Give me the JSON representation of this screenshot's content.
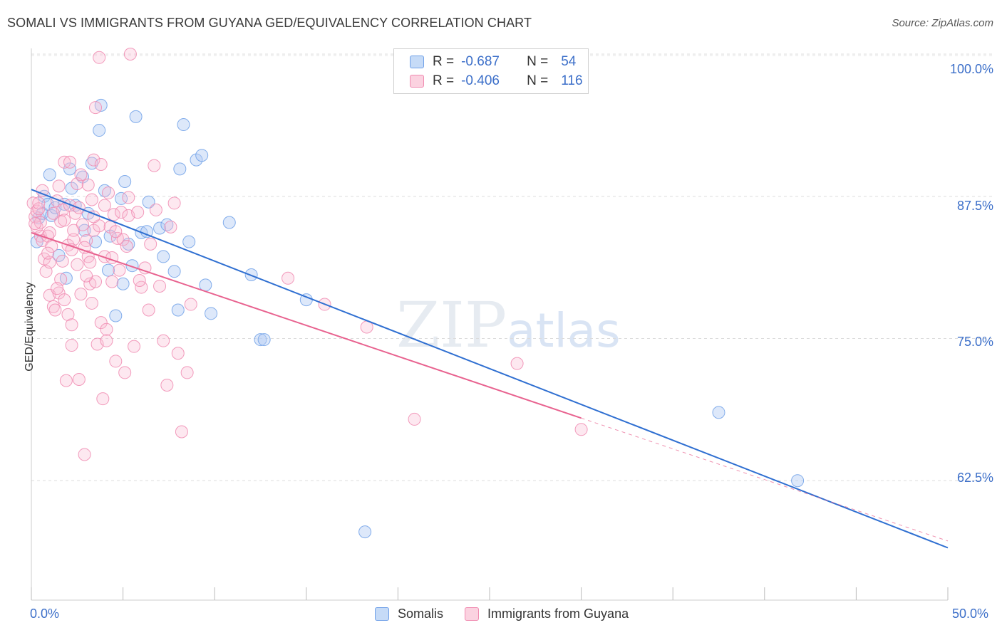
{
  "title": "SOMALI VS IMMIGRANTS FROM GUYANA GED/EQUIVALENCY CORRELATION CHART",
  "source": "Source: ZipAtlas.com",
  "watermark": {
    "zip": "ZIP",
    "atlas": "atlas"
  },
  "legend": {
    "rows": [
      {
        "r_label": "R =",
        "r_value": "-0.687",
        "n_label": "N =",
        "n_value": "54",
        "color": "#6fa0e8"
      },
      {
        "r_label": "R =",
        "r_value": "-0.406",
        "n_label": "N =",
        "n_value": "116",
        "color": "#f08ab0"
      }
    ]
  },
  "bottom_legend": [
    {
      "label": "Somalis",
      "color": "#6fa0e8"
    },
    {
      "label": "Immigrants from Guyana",
      "color": "#f08ab0"
    }
  ],
  "chart_data": {
    "type": "scatter",
    "title": "SOMALI VS IMMIGRANTS FROM GUYANA GED/EQUIVALENCY CORRELATION CHART",
    "xlabel": "",
    "ylabel": "GED/Equivalency",
    "xlim": [
      0,
      50
    ],
    "ylim": [
      52,
      100.5
    ],
    "x_tick_labels": [
      "0.0%",
      "50.0%"
    ],
    "y_ticks": [
      62.5,
      75.0,
      87.5,
      100.0
    ],
    "y_tick_labels": [
      "62.5%",
      "75.0%",
      "87.5%",
      "100.0%"
    ],
    "grid": true,
    "series": [
      {
        "name": "Somalis",
        "color": "#6fa0e8",
        "line_color": "#2f6fd1",
        "trend": {
          "x": [
            0,
            50
          ],
          "y": [
            88.1,
            56.6
          ]
        },
        "points": [
          [
            0.3,
            83.5
          ],
          [
            0.4,
            85.6
          ],
          [
            0.6,
            86.0
          ],
          [
            0.7,
            87.5
          ],
          [
            0.9,
            86.8
          ],
          [
            1.0,
            89.4
          ],
          [
            1.1,
            85.8
          ],
          [
            1.3,
            86.5
          ],
          [
            1.5,
            82.3
          ],
          [
            1.8,
            86.8
          ],
          [
            1.9,
            80.3
          ],
          [
            2.1,
            89.9
          ],
          [
            2.2,
            88.2
          ],
          [
            2.4,
            86.7
          ],
          [
            2.8,
            89.2
          ],
          [
            2.9,
            84.5
          ],
          [
            3.1,
            86.0
          ],
          [
            3.3,
            90.4
          ],
          [
            3.5,
            83.5
          ],
          [
            3.7,
            93.3
          ],
          [
            3.8,
            95.5
          ],
          [
            4.0,
            88.0
          ],
          [
            4.2,
            81.0
          ],
          [
            4.3,
            84.0
          ],
          [
            4.6,
            77.0
          ],
          [
            4.9,
            87.3
          ],
          [
            5.0,
            79.8
          ],
          [
            5.1,
            88.8
          ],
          [
            5.3,
            83.3
          ],
          [
            5.5,
            81.4
          ],
          [
            5.7,
            94.5
          ],
          [
            6.0,
            84.3
          ],
          [
            6.4,
            87.0
          ],
          [
            7.0,
            84.7
          ],
          [
            7.2,
            82.2
          ],
          [
            7.4,
            85.0
          ],
          [
            7.8,
            80.9
          ],
          [
            8.0,
            77.5
          ],
          [
            8.1,
            89.9
          ],
          [
            8.3,
            93.8
          ],
          [
            8.6,
            83.5
          ],
          [
            9.0,
            90.7
          ],
          [
            9.3,
            91.1
          ],
          [
            9.5,
            79.7
          ],
          [
            9.8,
            77.2
          ],
          [
            10.8,
            85.2
          ],
          [
            12.0,
            80.6
          ],
          [
            12.5,
            74.9
          ],
          [
            12.7,
            74.9
          ],
          [
            15.0,
            78.4
          ],
          [
            18.2,
            58.0
          ],
          [
            37.5,
            68.5
          ],
          [
            41.8,
            62.5
          ],
          [
            6.3,
            84.4
          ]
        ]
      },
      {
        "name": "Immigrants from Guyana",
        "color": "#f08ab0",
        "line_color": "#e8628f",
        "trend": {
          "x": [
            0,
            30
          ],
          "y": [
            84.3,
            68.0
          ]
        },
        "trend_dashed": {
          "x": [
            30,
            50
          ],
          "y": [
            68.0,
            57.2
          ]
        },
        "points": [
          [
            0.1,
            86.9
          ],
          [
            0.2,
            85.7
          ],
          [
            0.3,
            86.2
          ],
          [
            0.3,
            84.8
          ],
          [
            0.4,
            86.4
          ],
          [
            0.5,
            84.0
          ],
          [
            0.5,
            85.2
          ],
          [
            0.6,
            83.6
          ],
          [
            0.7,
            82.0
          ],
          [
            0.8,
            80.9
          ],
          [
            0.9,
            84.0
          ],
          [
            1.0,
            81.7
          ],
          [
            1.0,
            78.8
          ],
          [
            1.1,
            83.1
          ],
          [
            1.2,
            77.8
          ],
          [
            1.3,
            77.5
          ],
          [
            1.4,
            87.1
          ],
          [
            1.5,
            79.0
          ],
          [
            1.5,
            88.4
          ],
          [
            1.6,
            85.3
          ],
          [
            1.7,
            86.3
          ],
          [
            1.7,
            81.8
          ],
          [
            1.8,
            90.5
          ],
          [
            1.8,
            78.4
          ],
          [
            1.9,
            71.3
          ],
          [
            2.0,
            77.1
          ],
          [
            2.0,
            83.2
          ],
          [
            2.1,
            86.7
          ],
          [
            2.1,
            90.5
          ],
          [
            2.2,
            76.2
          ],
          [
            2.2,
            74.4
          ],
          [
            2.3,
            83.7
          ],
          [
            2.3,
            84.5
          ],
          [
            2.4,
            86.0
          ],
          [
            2.5,
            88.6
          ],
          [
            2.5,
            81.5
          ],
          [
            2.6,
            71.4
          ],
          [
            2.7,
            89.4
          ],
          [
            2.7,
            78.9
          ],
          [
            2.8,
            85.0
          ],
          [
            2.9,
            64.8
          ],
          [
            3.0,
            83.6
          ],
          [
            3.1,
            88.5
          ],
          [
            3.1,
            82.2
          ],
          [
            3.2,
            79.8
          ],
          [
            3.2,
            81.7
          ],
          [
            3.3,
            87.2
          ],
          [
            3.3,
            78.1
          ],
          [
            3.4,
            84.5
          ],
          [
            3.4,
            90.7
          ],
          [
            3.5,
            80.0
          ],
          [
            3.5,
            95.3
          ],
          [
            3.6,
            74.5
          ],
          [
            3.7,
            99.7
          ],
          [
            3.7,
            84.9
          ],
          [
            3.8,
            90.3
          ],
          [
            3.8,
            76.4
          ],
          [
            3.9,
            69.7
          ],
          [
            4.0,
            82.2
          ],
          [
            4.0,
            86.7
          ],
          [
            4.1,
            75.8
          ],
          [
            4.1,
            74.8
          ],
          [
            4.2,
            87.8
          ],
          [
            4.3,
            84.8
          ],
          [
            4.4,
            82.1
          ],
          [
            4.5,
            85.9
          ],
          [
            4.6,
            73.0
          ],
          [
            4.7,
            83.8
          ],
          [
            4.8,
            81.0
          ],
          [
            4.9,
            86.1
          ],
          [
            5.0,
            83.7
          ],
          [
            5.1,
            72.0
          ],
          [
            5.2,
            83.1
          ],
          [
            5.3,
            87.4
          ],
          [
            5.3,
            85.8
          ],
          [
            5.4,
            100.0
          ],
          [
            5.6,
            74.3
          ],
          [
            5.8,
            86.1
          ],
          [
            6.0,
            79.5
          ],
          [
            6.2,
            81.2
          ],
          [
            6.4,
            77.5
          ],
          [
            6.5,
            83.3
          ],
          [
            6.7,
            90.2
          ],
          [
            6.8,
            86.3
          ],
          [
            7.0,
            79.6
          ],
          [
            7.2,
            74.8
          ],
          [
            7.4,
            70.9
          ],
          [
            7.6,
            84.8
          ],
          [
            7.8,
            86.9
          ],
          [
            8.0,
            73.7
          ],
          [
            8.2,
            66.8
          ],
          [
            8.5,
            72.0
          ],
          [
            8.7,
            78.0
          ],
          [
            14.0,
            80.3
          ],
          [
            16.0,
            78.0
          ],
          [
            18.3,
            76.0
          ],
          [
            26.5,
            72.8
          ],
          [
            20.9,
            67.9
          ],
          [
            30.0,
            67.0
          ],
          [
            0.6,
            88.0
          ],
          [
            1.2,
            86.0
          ],
          [
            2.6,
            86.5
          ],
          [
            3.4,
            85.7
          ],
          [
            4.6,
            84.4
          ],
          [
            1.0,
            84.3
          ],
          [
            1.6,
            80.2
          ],
          [
            0.9,
            82.5
          ],
          [
            2.2,
            82.8
          ],
          [
            1.4,
            79.4
          ],
          [
            3.0,
            80.5
          ],
          [
            4.4,
            80.0
          ],
          [
            5.9,
            80.1
          ],
          [
            0.4,
            86.9
          ],
          [
            1.8,
            85.4
          ],
          [
            2.9,
            83.0
          ],
          [
            0.2,
            85.1
          ]
        ]
      }
    ]
  }
}
